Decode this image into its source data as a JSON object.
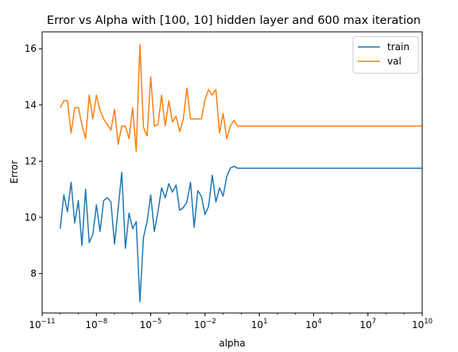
{
  "chart_data": {
    "type": "line",
    "title": "Error vs Alpha with [100, 10] hidden layer and 600 max iteration",
    "xlabel": "alpha",
    "ylabel": "Error",
    "x_scale": "log",
    "xlim": [
      1e-11,
      10000000000.0
    ],
    "ylim": [
      6.6,
      16.6
    ],
    "grid": false,
    "legend_position": "top-right",
    "x_ticks": [
      {
        "value": 1e-11,
        "base": "10",
        "exp": "−11"
      },
      {
        "value": 1e-08,
        "base": "10",
        "exp": "−8"
      },
      {
        "value": 1e-05,
        "base": "10",
        "exp": "−5"
      },
      {
        "value": 0.01,
        "base": "10",
        "exp": "−2"
      },
      {
        "value": 10.0,
        "base": "10",
        "exp": "1"
      },
      {
        "value": 10000.0,
        "base": "10",
        "exp": "4"
      },
      {
        "value": 10000000.0,
        "base": "10",
        "exp": "7"
      },
      {
        "value": 10000000000.0,
        "base": "10",
        "exp": "10"
      }
    ],
    "y_ticks": [
      {
        "value": 8,
        "label": "8"
      },
      {
        "value": 10,
        "label": "10"
      },
      {
        "value": 12,
        "label": "12"
      },
      {
        "value": 14,
        "label": "14"
      },
      {
        "value": 16,
        "label": "16"
      }
    ],
    "series": [
      {
        "name": "train",
        "color": "#1f77b4",
        "points": [
          [
            1e-10,
            9.6
          ],
          [
            1.58e-10,
            10.8
          ],
          [
            2.51e-10,
            10.2
          ],
          [
            3.98e-10,
            11.25
          ],
          [
            6.31e-10,
            9.8
          ],
          [
            1e-09,
            10.6
          ],
          [
            1.58e-09,
            9.0
          ],
          [
            2.51e-09,
            11.0
          ],
          [
            3.98e-09,
            9.1
          ],
          [
            6.31e-09,
            9.4
          ],
          [
            1e-08,
            10.45
          ],
          [
            1.58e-08,
            9.5
          ],
          [
            2.51e-08,
            10.6
          ],
          [
            3.98e-08,
            10.7
          ],
          [
            6.31e-08,
            10.55
          ],
          [
            1e-07,
            9.05
          ],
          [
            1.58e-07,
            10.3
          ],
          [
            2.51e-07,
            11.6
          ],
          [
            3.98e-07,
            8.9
          ],
          [
            6.31e-07,
            10.15
          ],
          [
            1e-06,
            9.6
          ],
          [
            1.58e-06,
            9.85
          ],
          [
            2.51e-06,
            7.0
          ],
          [
            3.98e-06,
            9.3
          ],
          [
            6.31e-06,
            9.85
          ],
          [
            1e-05,
            10.8
          ],
          [
            1.58e-05,
            9.5
          ],
          [
            2.51e-05,
            10.2
          ],
          [
            3.98e-05,
            11.05
          ],
          [
            6.31e-05,
            10.7
          ],
          [
            0.0001,
            11.2
          ],
          [
            0.000158,
            10.9
          ],
          [
            0.000251,
            11.15
          ],
          [
            0.000398,
            10.25
          ],
          [
            0.000631,
            10.35
          ],
          [
            0.001,
            10.55
          ],
          [
            0.00158,
            11.25
          ],
          [
            0.00251,
            9.65
          ],
          [
            0.00398,
            10.95
          ],
          [
            0.00631,
            10.75
          ],
          [
            0.01,
            10.1
          ],
          [
            0.0158,
            10.4
          ],
          [
            0.0251,
            11.5
          ],
          [
            0.0398,
            10.55
          ],
          [
            0.0631,
            11.05
          ],
          [
            0.1,
            10.75
          ],
          [
            0.158,
            11.45
          ],
          [
            0.251,
            11.75
          ],
          [
            0.398,
            11.82
          ],
          [
            0.631,
            11.75
          ],
          [
            1,
            11.75
          ],
          [
            10000000000.0,
            11.75
          ]
        ]
      },
      {
        "name": "val",
        "color": "#ff7f0e",
        "points": [
          [
            1e-10,
            13.9
          ],
          [
            1.58e-10,
            14.15
          ],
          [
            2.51e-10,
            14.15
          ],
          [
            3.98e-10,
            13.0
          ],
          [
            6.31e-10,
            13.9
          ],
          [
            1e-09,
            13.9
          ],
          [
            1.58e-09,
            13.3
          ],
          [
            2.51e-09,
            12.8
          ],
          [
            3.98e-09,
            14.35
          ],
          [
            6.31e-09,
            13.5
          ],
          [
            1e-08,
            14.35
          ],
          [
            1.58e-08,
            13.8
          ],
          [
            2.51e-08,
            13.5
          ],
          [
            3.98e-08,
            13.3
          ],
          [
            6.31e-08,
            13.1
          ],
          [
            1e-07,
            13.85
          ],
          [
            1.58e-07,
            12.6
          ],
          [
            2.51e-07,
            13.25
          ],
          [
            3.98e-07,
            13.25
          ],
          [
            6.31e-07,
            12.8
          ],
          [
            1e-06,
            13.9
          ],
          [
            1.58e-06,
            12.35
          ],
          [
            2.51e-06,
            16.15
          ],
          [
            3.98e-06,
            13.2
          ],
          [
            6.31e-06,
            12.9
          ],
          [
            1e-05,
            15.0
          ],
          [
            1.58e-05,
            13.25
          ],
          [
            2.51e-05,
            13.3
          ],
          [
            3.98e-05,
            14.35
          ],
          [
            6.31e-05,
            13.25
          ],
          [
            0.0001,
            14.15
          ],
          [
            0.000158,
            13.4
          ],
          [
            0.000251,
            13.6
          ],
          [
            0.000398,
            13.05
          ],
          [
            0.000631,
            13.5
          ],
          [
            0.001,
            14.6
          ],
          [
            0.00158,
            13.5
          ],
          [
            0.00251,
            13.5
          ],
          [
            0.00398,
            13.5
          ],
          [
            0.00631,
            13.5
          ],
          [
            0.01,
            14.2
          ],
          [
            0.0158,
            14.55
          ],
          [
            0.0251,
            14.35
          ],
          [
            0.0398,
            14.55
          ],
          [
            0.0631,
            13.0
          ],
          [
            0.1,
            13.7
          ],
          [
            0.158,
            12.8
          ],
          [
            0.251,
            13.25
          ],
          [
            0.398,
            13.45
          ],
          [
            0.631,
            13.25
          ],
          [
            1,
            13.25
          ],
          [
            10000000000.0,
            13.25
          ]
        ]
      }
    ]
  }
}
